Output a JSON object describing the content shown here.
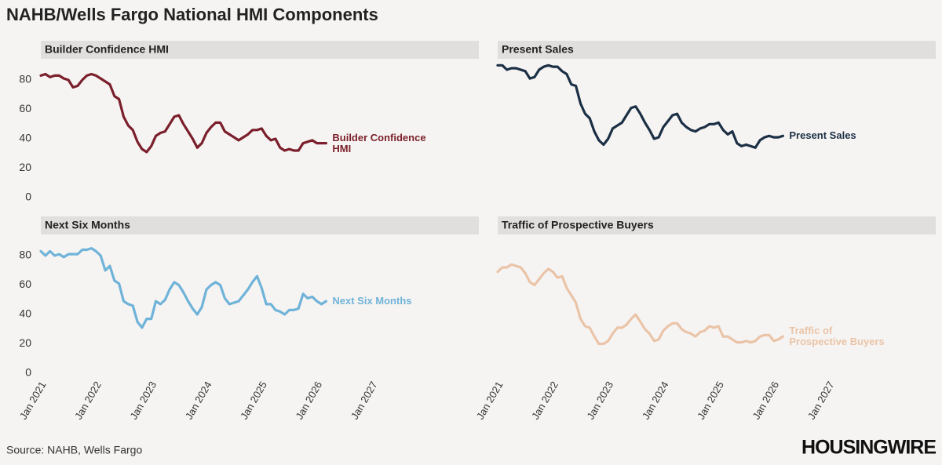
{
  "header": {
    "title": "NAHB/Wells Fargo National HMI Components"
  },
  "footer": {
    "source": "Source: NAHB, Wells Fargo",
    "logo": "HOUSINGWIRE"
  },
  "chart_data": [
    {
      "type": "line",
      "title": "Builder Confidence HMI",
      "x": [
        "2021-01",
        "2021-02",
        "2021-03",
        "2021-04",
        "2021-05",
        "2021-06",
        "2021-07",
        "2021-08",
        "2021-09",
        "2021-10",
        "2021-11",
        "2021-12",
        "2022-01",
        "2022-02",
        "2022-03",
        "2022-04",
        "2022-05",
        "2022-06",
        "2022-07",
        "2022-08",
        "2022-09",
        "2022-10",
        "2022-11",
        "2022-12",
        "2023-01",
        "2023-02",
        "2023-03",
        "2023-04",
        "2023-05",
        "2023-06",
        "2023-07",
        "2023-08",
        "2023-09",
        "2023-10",
        "2023-11",
        "2023-12",
        "2024-01",
        "2024-02",
        "2024-03",
        "2024-04",
        "2024-05",
        "2024-06",
        "2024-07",
        "2024-08",
        "2024-09",
        "2024-10",
        "2024-11",
        "2024-12",
        "2025-01",
        "2025-02",
        "2025-03",
        "2025-04",
        "2025-05",
        "2025-06",
        "2025-07",
        "2025-08",
        "2025-09",
        "2025-10",
        "2025-11",
        "2025-12",
        "2026-01",
        "2026-02",
        "2026-03"
      ],
      "series": [
        {
          "name": "Builder Confidence HMI",
          "color": "#7a1f2b",
          "values": [
            83,
            84,
            82,
            83,
            83,
            81,
            80,
            75,
            76,
            80,
            83,
            84,
            83,
            81,
            79,
            77,
            69,
            67,
            55,
            49,
            46,
            38,
            33,
            31,
            35,
            42,
            44,
            45,
            50,
            55,
            56,
            50,
            45,
            40,
            34,
            37,
            44,
            48,
            51,
            51,
            45,
            43,
            41,
            39,
            41,
            43,
            46,
            46,
            47,
            42,
            39,
            40,
            34,
            32,
            33,
            32,
            32,
            37,
            38,
            39,
            37,
            37,
            37
          ]
        }
      ],
      "xlim": [
        "2021-01",
        "2027-01"
      ],
      "ylim": [
        0,
        90
      ],
      "yticks": [
        0,
        20,
        40,
        60,
        80
      ]
    },
    {
      "type": "line",
      "title": "Present Sales",
      "x": [
        "2021-01",
        "2021-02",
        "2021-03",
        "2021-04",
        "2021-05",
        "2021-06",
        "2021-07",
        "2021-08",
        "2021-09",
        "2021-10",
        "2021-11",
        "2021-12",
        "2022-01",
        "2022-02",
        "2022-03",
        "2022-04",
        "2022-05",
        "2022-06",
        "2022-07",
        "2022-08",
        "2022-09",
        "2022-10",
        "2022-11",
        "2022-12",
        "2023-01",
        "2023-02",
        "2023-03",
        "2023-04",
        "2023-05",
        "2023-06",
        "2023-07",
        "2023-08",
        "2023-09",
        "2023-10",
        "2023-11",
        "2023-12",
        "2024-01",
        "2024-02",
        "2024-03",
        "2024-04",
        "2024-05",
        "2024-06",
        "2024-07",
        "2024-08",
        "2024-09",
        "2024-10",
        "2024-11",
        "2024-12",
        "2025-01",
        "2025-02",
        "2025-03",
        "2025-04",
        "2025-05",
        "2025-06",
        "2025-07",
        "2025-08",
        "2025-09",
        "2025-10",
        "2025-11",
        "2025-12",
        "2026-01",
        "2026-02",
        "2026-03"
      ],
      "series": [
        {
          "name": "Present Sales",
          "color": "#1b2f45",
          "values": [
            90,
            90,
            87,
            88,
            88,
            87,
            86,
            81,
            82,
            87,
            89,
            90,
            89,
            89,
            86,
            84,
            77,
            76,
            64,
            57,
            54,
            45,
            39,
            36,
            40,
            47,
            49,
            51,
            56,
            61,
            62,
            57,
            51,
            46,
            40,
            41,
            48,
            52,
            56,
            57,
            51,
            48,
            46,
            45,
            47,
            48,
            50,
            50,
            51,
            46,
            43,
            45,
            37,
            35,
            36,
            35,
            34,
            39,
            41,
            42,
            41,
            41,
            42
          ]
        }
      ],
      "xlim": [
        "2021-01",
        "2027-01"
      ],
      "ylim": [
        0,
        90
      ]
    },
    {
      "type": "line",
      "title": "Next Six Months",
      "x": [
        "2021-01",
        "2021-02",
        "2021-03",
        "2021-04",
        "2021-05",
        "2021-06",
        "2021-07",
        "2021-08",
        "2021-09",
        "2021-10",
        "2021-11",
        "2021-12",
        "2022-01",
        "2022-02",
        "2022-03",
        "2022-04",
        "2022-05",
        "2022-06",
        "2022-07",
        "2022-08",
        "2022-09",
        "2022-10",
        "2022-11",
        "2022-12",
        "2023-01",
        "2023-02",
        "2023-03",
        "2023-04",
        "2023-05",
        "2023-06",
        "2023-07",
        "2023-08",
        "2023-09",
        "2023-10",
        "2023-11",
        "2023-12",
        "2024-01",
        "2024-02",
        "2024-03",
        "2024-04",
        "2024-05",
        "2024-06",
        "2024-07",
        "2024-08",
        "2024-09",
        "2024-10",
        "2024-11",
        "2024-12",
        "2025-01",
        "2025-02",
        "2025-03",
        "2025-04",
        "2025-05",
        "2025-06",
        "2025-07",
        "2025-08",
        "2025-09",
        "2025-10",
        "2025-11",
        "2025-12",
        "2026-01",
        "2026-02",
        "2026-03"
      ],
      "series": [
        {
          "name": "Next Six Months",
          "color": "#6fb3d9",
          "values": [
            83,
            80,
            83,
            80,
            81,
            79,
            81,
            81,
            81,
            84,
            84,
            85,
            83,
            80,
            70,
            73,
            63,
            61,
            49,
            47,
            46,
            35,
            31,
            37,
            37,
            49,
            47,
            50,
            57,
            62,
            60,
            55,
            49,
            44,
            40,
            45,
            57,
            60,
            62,
            60,
            51,
            47,
            48,
            49,
            53,
            57,
            62,
            66,
            58,
            47,
            47,
            43,
            42,
            40,
            43,
            43,
            44,
            54,
            51,
            52,
            49,
            47,
            49
          ]
        }
      ],
      "xlim": [
        "2021-01",
        "2027-01"
      ],
      "ylim": [
        0,
        90
      ],
      "yticks": [
        0,
        20,
        40,
        60,
        80
      ],
      "xticks": [
        {
          "value": "2021-01",
          "label": "Jan 2021"
        },
        {
          "value": "2022-01",
          "label": "Jan 2022"
        },
        {
          "value": "2023-01",
          "label": "Jan 2023"
        },
        {
          "value": "2024-01",
          "label": "Jan 2024"
        },
        {
          "value": "2025-01",
          "label": "Jan 2025"
        },
        {
          "value": "2026-01",
          "label": "Jan 2026"
        },
        {
          "value": "2027-01",
          "label": "Jan 2027"
        }
      ]
    },
    {
      "type": "line",
      "title": "Traffic of Prospective Buyers",
      "x": [
        "2021-01",
        "2021-02",
        "2021-03",
        "2021-04",
        "2021-05",
        "2021-06",
        "2021-07",
        "2021-08",
        "2021-09",
        "2021-10",
        "2021-11",
        "2021-12",
        "2022-01",
        "2022-02",
        "2022-03",
        "2022-04",
        "2022-05",
        "2022-06",
        "2022-07",
        "2022-08",
        "2022-09",
        "2022-10",
        "2022-11",
        "2022-12",
        "2023-01",
        "2023-02",
        "2023-03",
        "2023-04",
        "2023-05",
        "2023-06",
        "2023-07",
        "2023-08",
        "2023-09",
        "2023-10",
        "2023-11",
        "2023-12",
        "2024-01",
        "2024-02",
        "2024-03",
        "2024-04",
        "2024-05",
        "2024-06",
        "2024-07",
        "2024-08",
        "2024-09",
        "2024-10",
        "2024-11",
        "2024-12",
        "2025-01",
        "2025-02",
        "2025-03",
        "2025-04",
        "2025-05",
        "2025-06",
        "2025-07",
        "2025-08",
        "2025-09",
        "2025-10",
        "2025-11",
        "2025-12",
        "2026-01",
        "2026-02",
        "2026-03"
      ],
      "series": [
        {
          "name": "Traffic of Prospective Buyers",
          "color": "#eac4a8",
          "values": [
            69,
            72,
            72,
            74,
            73,
            72,
            68,
            62,
            60,
            64,
            68,
            71,
            69,
            65,
            66,
            58,
            53,
            48,
            37,
            32,
            31,
            25,
            20,
            20,
            22,
            27,
            31,
            31,
            33,
            37,
            40,
            35,
            30,
            27,
            22,
            23,
            29,
            32,
            34,
            34,
            30,
            28,
            27,
            25,
            28,
            29,
            32,
            31,
            32,
            25,
            25,
            23,
            21,
            21,
            22,
            21,
            22,
            25,
            26,
            26,
            22,
            23,
            25
          ]
        }
      ],
      "xlim": [
        "2021-01",
        "2027-01"
      ],
      "ylim": [
        0,
        90
      ],
      "xticks": [
        {
          "value": "2021-01",
          "label": "Jan 2021"
        },
        {
          "value": "2022-01",
          "label": "Jan 2022"
        },
        {
          "value": "2023-01",
          "label": "Jan 2023"
        },
        {
          "value": "2024-01",
          "label": "Jan 2024"
        },
        {
          "value": "2025-01",
          "label": "Jan 2025"
        },
        {
          "value": "2026-01",
          "label": "Jan 2026"
        },
        {
          "value": "2027-01",
          "label": "Jan 2027"
        }
      ]
    }
  ]
}
